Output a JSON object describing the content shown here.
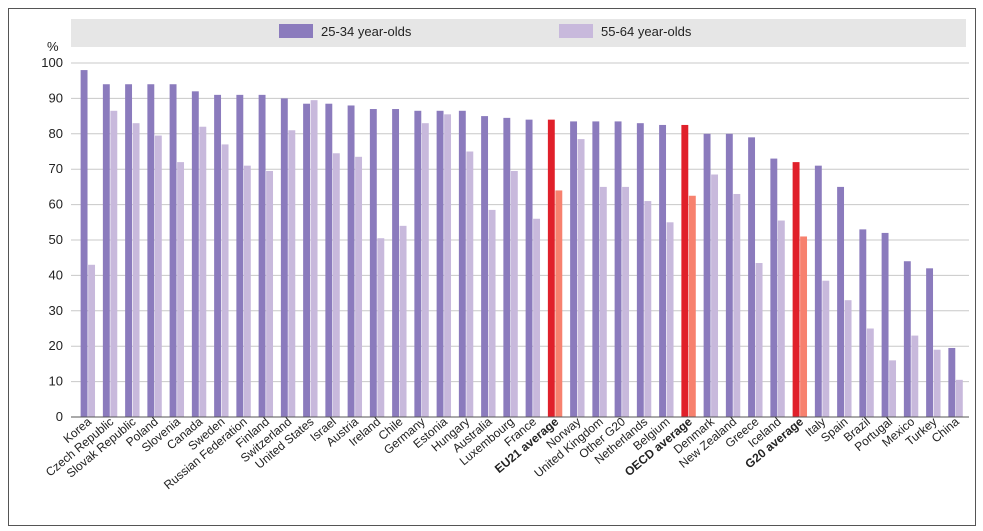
{
  "chart_data": {
    "type": "bar",
    "title": "",
    "xlabel": "",
    "ylabel": "%",
    "ylim": [
      0,
      100
    ],
    "yticks": [
      0,
      10,
      20,
      30,
      40,
      50,
      60,
      70,
      80,
      90,
      100
    ],
    "grid": true,
    "legend_position": "top",
    "categories": [
      "Korea",
      "Czech Republic",
      "Slovak Republic",
      "Poland",
      "Slovenia",
      "Canada",
      "Sweden",
      "Russian Federation",
      "Finland",
      "Switzerland",
      "United States",
      "Israel",
      "Austria",
      "Ireland",
      "Chile",
      "Germany",
      "Estonia",
      "Hungary",
      "Australia",
      "Luxembourg",
      "France",
      "EU21 average",
      "Norway",
      "United Kingdom",
      "Other G20",
      "Netherlands",
      "Belgium",
      "OECD average",
      "Denmark",
      "New Zealand",
      "Greece",
      "Iceland",
      "G20 average",
      "Italy",
      "Spain",
      "Brazil",
      "Portugal",
      "Mexico",
      "Turkey",
      "China"
    ],
    "highlighted": [
      "EU21 average",
      "OECD average",
      "G20 average"
    ],
    "series": [
      {
        "name": "25-34 year-olds",
        "color": "#8b7bbd",
        "highlight_color": "#e0202a",
        "values": [
          98,
          94,
          94,
          94,
          94,
          92,
          91,
          91,
          91,
          90,
          88.5,
          88.5,
          88,
          87,
          87,
          86.5,
          86.5,
          86.5,
          85,
          84.5,
          84,
          84,
          83.5,
          83.5,
          83.5,
          83,
          82.5,
          82.5,
          80,
          80,
          79,
          73,
          72,
          71,
          65,
          53,
          52,
          44,
          42,
          19.5
        ]
      },
      {
        "name": "55-64 year-olds",
        "color": "#c8b9dc",
        "highlight_color": "#f7816e",
        "values": [
          43,
          86.5,
          83,
          79.5,
          72,
          82,
          77,
          71,
          69.5,
          81,
          89.5,
          74.5,
          73.5,
          50.5,
          54,
          83,
          85.5,
          75,
          58.5,
          69.5,
          56,
          64,
          78.5,
          65,
          65,
          61,
          55,
          62.5,
          68.5,
          63,
          43.5,
          55.5,
          51,
          38.5,
          33,
          25,
          16,
          23,
          19,
          10.5
        ]
      }
    ]
  }
}
